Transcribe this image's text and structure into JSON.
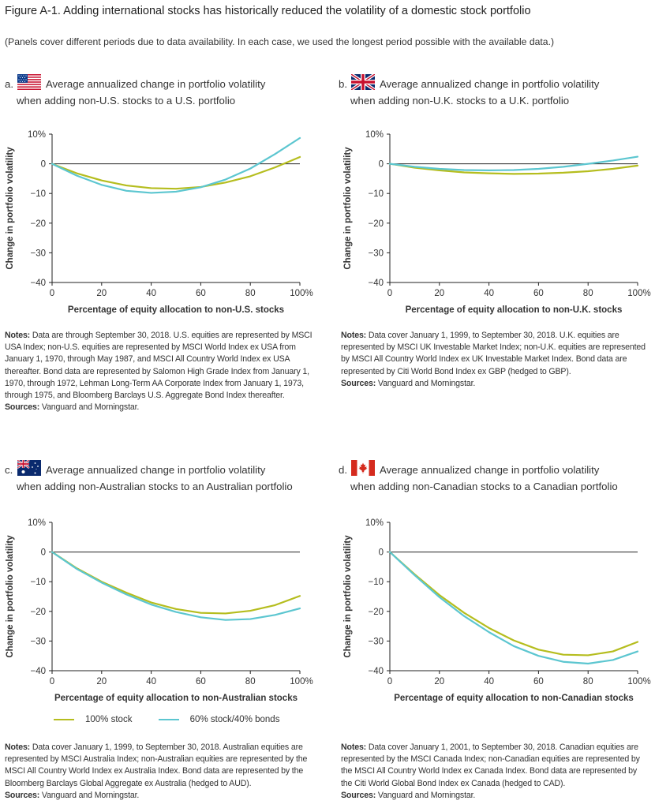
{
  "figure": {
    "title": "Figure A-1. Adding international stocks has historically reduced the volatility of a domestic stock portfolio",
    "subtitle": "(Panels cover different periods due to data availability. In each case, we used the longest period possible with the available data.)"
  },
  "colors": {
    "stock100": "#b5bd1e",
    "stock60": "#5cc6d0",
    "axis": "#222222"
  },
  "legend": {
    "stock100": "100% stock",
    "stock60": "60% stock/40% bonds"
  },
  "chart_data": [
    {
      "type": "line",
      "letter": "a.",
      "flag": "us-flag-icon",
      "title_l1": "Average annualized change in portfolio volatility",
      "title_l2": "when adding non-U.S. stocks to a U.S. portfolio",
      "xlabel": "Percentage of equity allocation to non-U.S. stocks",
      "ylabel": "Change in portfolio volatility",
      "x": [
        0,
        10,
        20,
        30,
        40,
        50,
        60,
        70,
        80,
        90,
        100
      ],
      "xticks": [
        "0",
        "20",
        "40",
        "60",
        "80",
        "100%"
      ],
      "yticks": [
        "10%",
        "0",
        "−10",
        "−20",
        "−30",
        "−40"
      ],
      "ylim": [
        -40,
        10
      ],
      "series": [
        {
          "name": "100% stock",
          "values": [
            0,
            -3.2,
            -5.6,
            -7.3,
            -8.2,
            -8.4,
            -7.8,
            -6.3,
            -4.2,
            -1.2,
            2.3
          ]
        },
        {
          "name": "60% stock/40% bonds",
          "values": [
            0,
            -4.0,
            -7.1,
            -9.1,
            -9.8,
            -9.4,
            -7.9,
            -5.3,
            -1.6,
            3.3,
            8.7
          ]
        }
      ],
      "notes_label": "Notes:",
      "notes": " Data are through September 30, 2018. U.S. equities are represented by MSCI USA Index; non-U.S. equities are represented by MSCI World Index ex USA from January 1, 1970, through May 1987, and MSCI All Country World Index ex USA thereafter. Bond data are represented by Salomon High Grade Index from January 1, 1970, through 1972, Lehman Long-Term AA Corporate Index from January 1, 1973, through 1975, and Bloomberg Barclays U.S. Aggregate Bond Index thereafter.",
      "sources_label": "Sources:",
      "sources": " Vanguard and Morningstar."
    },
    {
      "type": "line",
      "letter": "b.",
      "flag": "uk-flag-icon",
      "title_l1": "Average annualized change in portfolio volatility",
      "title_l2": "when adding non-U.K. stocks to a U.K. portfolio",
      "xlabel": "Percentage of equity allocation to non-U.K. stocks",
      "ylabel": "Change in portfolio volatility",
      "x": [
        0,
        10,
        20,
        30,
        40,
        50,
        60,
        70,
        80,
        90,
        100
      ],
      "xticks": [
        "0",
        "20",
        "40",
        "60",
        "80",
        "100%"
      ],
      "yticks": [
        "10%",
        "0",
        "−10",
        "−20",
        "−30",
        "−40"
      ],
      "ylim": [
        -40,
        10
      ],
      "series": [
        {
          "name": "100% stock",
          "values": [
            0,
            -1.3,
            -2.2,
            -2.9,
            -3.2,
            -3.4,
            -3.3,
            -3.0,
            -2.5,
            -1.7,
            -0.6
          ]
        },
        {
          "name": "60% stock/40% bonds",
          "values": [
            0,
            -1.0,
            -1.7,
            -2.1,
            -2.2,
            -2.1,
            -1.7,
            -1.0,
            0.0,
            1.1,
            2.4
          ]
        }
      ],
      "notes_label": "Notes:",
      "notes": " Data cover January 1, 1999, to September 30, 2018. U.K. equities are represented by MSCI UK Investable Market Index; non-U.K. equities are represented by MSCI All Country World Index ex UK Investable Market Index. Bond data are represented by Citi World Bond Index ex GBP (hedged to GBP).",
      "sources_label": "Sources:",
      "sources": " Vanguard and Morningstar."
    },
    {
      "type": "line",
      "letter": "c.",
      "flag": "australia-flag-icon",
      "title_l1": "Average annualized change in portfolio volatility",
      "title_l2": "when adding non-Australian stocks to an Australian portfolio",
      "xlabel": "Percentage of equity allocation to non-Australian stocks",
      "ylabel": "Change in portfolio volatility",
      "x": [
        0,
        10,
        20,
        30,
        40,
        50,
        60,
        70,
        80,
        90,
        100
      ],
      "xticks": [
        "0",
        "20",
        "40",
        "60",
        "80",
        "100%"
      ],
      "yticks": [
        "10%",
        "0",
        "−10",
        "−20",
        "−30",
        "−40"
      ],
      "ylim": [
        -40,
        10
      ],
      "series": [
        {
          "name": "100% stock",
          "values": [
            0,
            -5.5,
            -10.0,
            -13.7,
            -17.0,
            -19.2,
            -20.5,
            -20.7,
            -19.8,
            -17.9,
            -14.8
          ]
        },
        {
          "name": "60% stock/40% bonds",
          "values": [
            0,
            -5.7,
            -10.3,
            -14.3,
            -17.7,
            -20.2,
            -22.0,
            -22.9,
            -22.6,
            -21.2,
            -19.0
          ]
        }
      ],
      "notes_label": "Notes:",
      "notes": " Data cover January 1, 1999, to September 30, 2018. Australian equities are represented by MSCI Australia Index; non-Australian equities are represented by the MSCI All Country World Index ex Australia Index. Bond data are represented by the Bloomberg Barclays Global Aggregate ex Australia (hedged to AUD).",
      "sources_label": "Sources:",
      "sources": " Vanguard and Morningstar."
    },
    {
      "type": "line",
      "letter": "d.",
      "flag": "canada-flag-icon",
      "title_l1": "Average annualized change in portfolio volatility",
      "title_l2": "when adding non-Canadian stocks to a Canadian portfolio",
      "xlabel": "Percentage of equity allocation to non-Canadian stocks",
      "ylabel": "Change in portfolio volatility",
      "x": [
        0,
        10,
        20,
        30,
        40,
        50,
        60,
        70,
        80,
        90,
        100
      ],
      "xticks": [
        "0",
        "20",
        "40",
        "60",
        "80",
        "100%"
      ],
      "yticks": [
        "10%",
        "0",
        "−10",
        "−20",
        "−30",
        "−40"
      ],
      "ylim": [
        -40,
        10
      ],
      "series": [
        {
          "name": "100% stock",
          "values": [
            0,
            -7.5,
            -14.5,
            -20.5,
            -25.6,
            -29.8,
            -32.9,
            -34.6,
            -34.8,
            -33.5,
            -30.3
          ]
        },
        {
          "name": "60% stock/40% bonds",
          "values": [
            0,
            -7.8,
            -15.2,
            -21.6,
            -27.0,
            -31.7,
            -35.0,
            -37.0,
            -37.6,
            -36.4,
            -33.5
          ]
        }
      ],
      "notes_label": "Notes:",
      "notes": " Data cover January 1, 2001, to September 30, 2018. Canadian equities are represented by the MSCI Canada Index; non-Canadian equities are represented by the MSCI All Country World Index ex Canada Index. Bond data are represented by the Citi World Global Bond Index ex Canada (hedged to CAD).",
      "sources_label": "Sources:",
      "sources": " Vanguard and Morningstar."
    }
  ]
}
